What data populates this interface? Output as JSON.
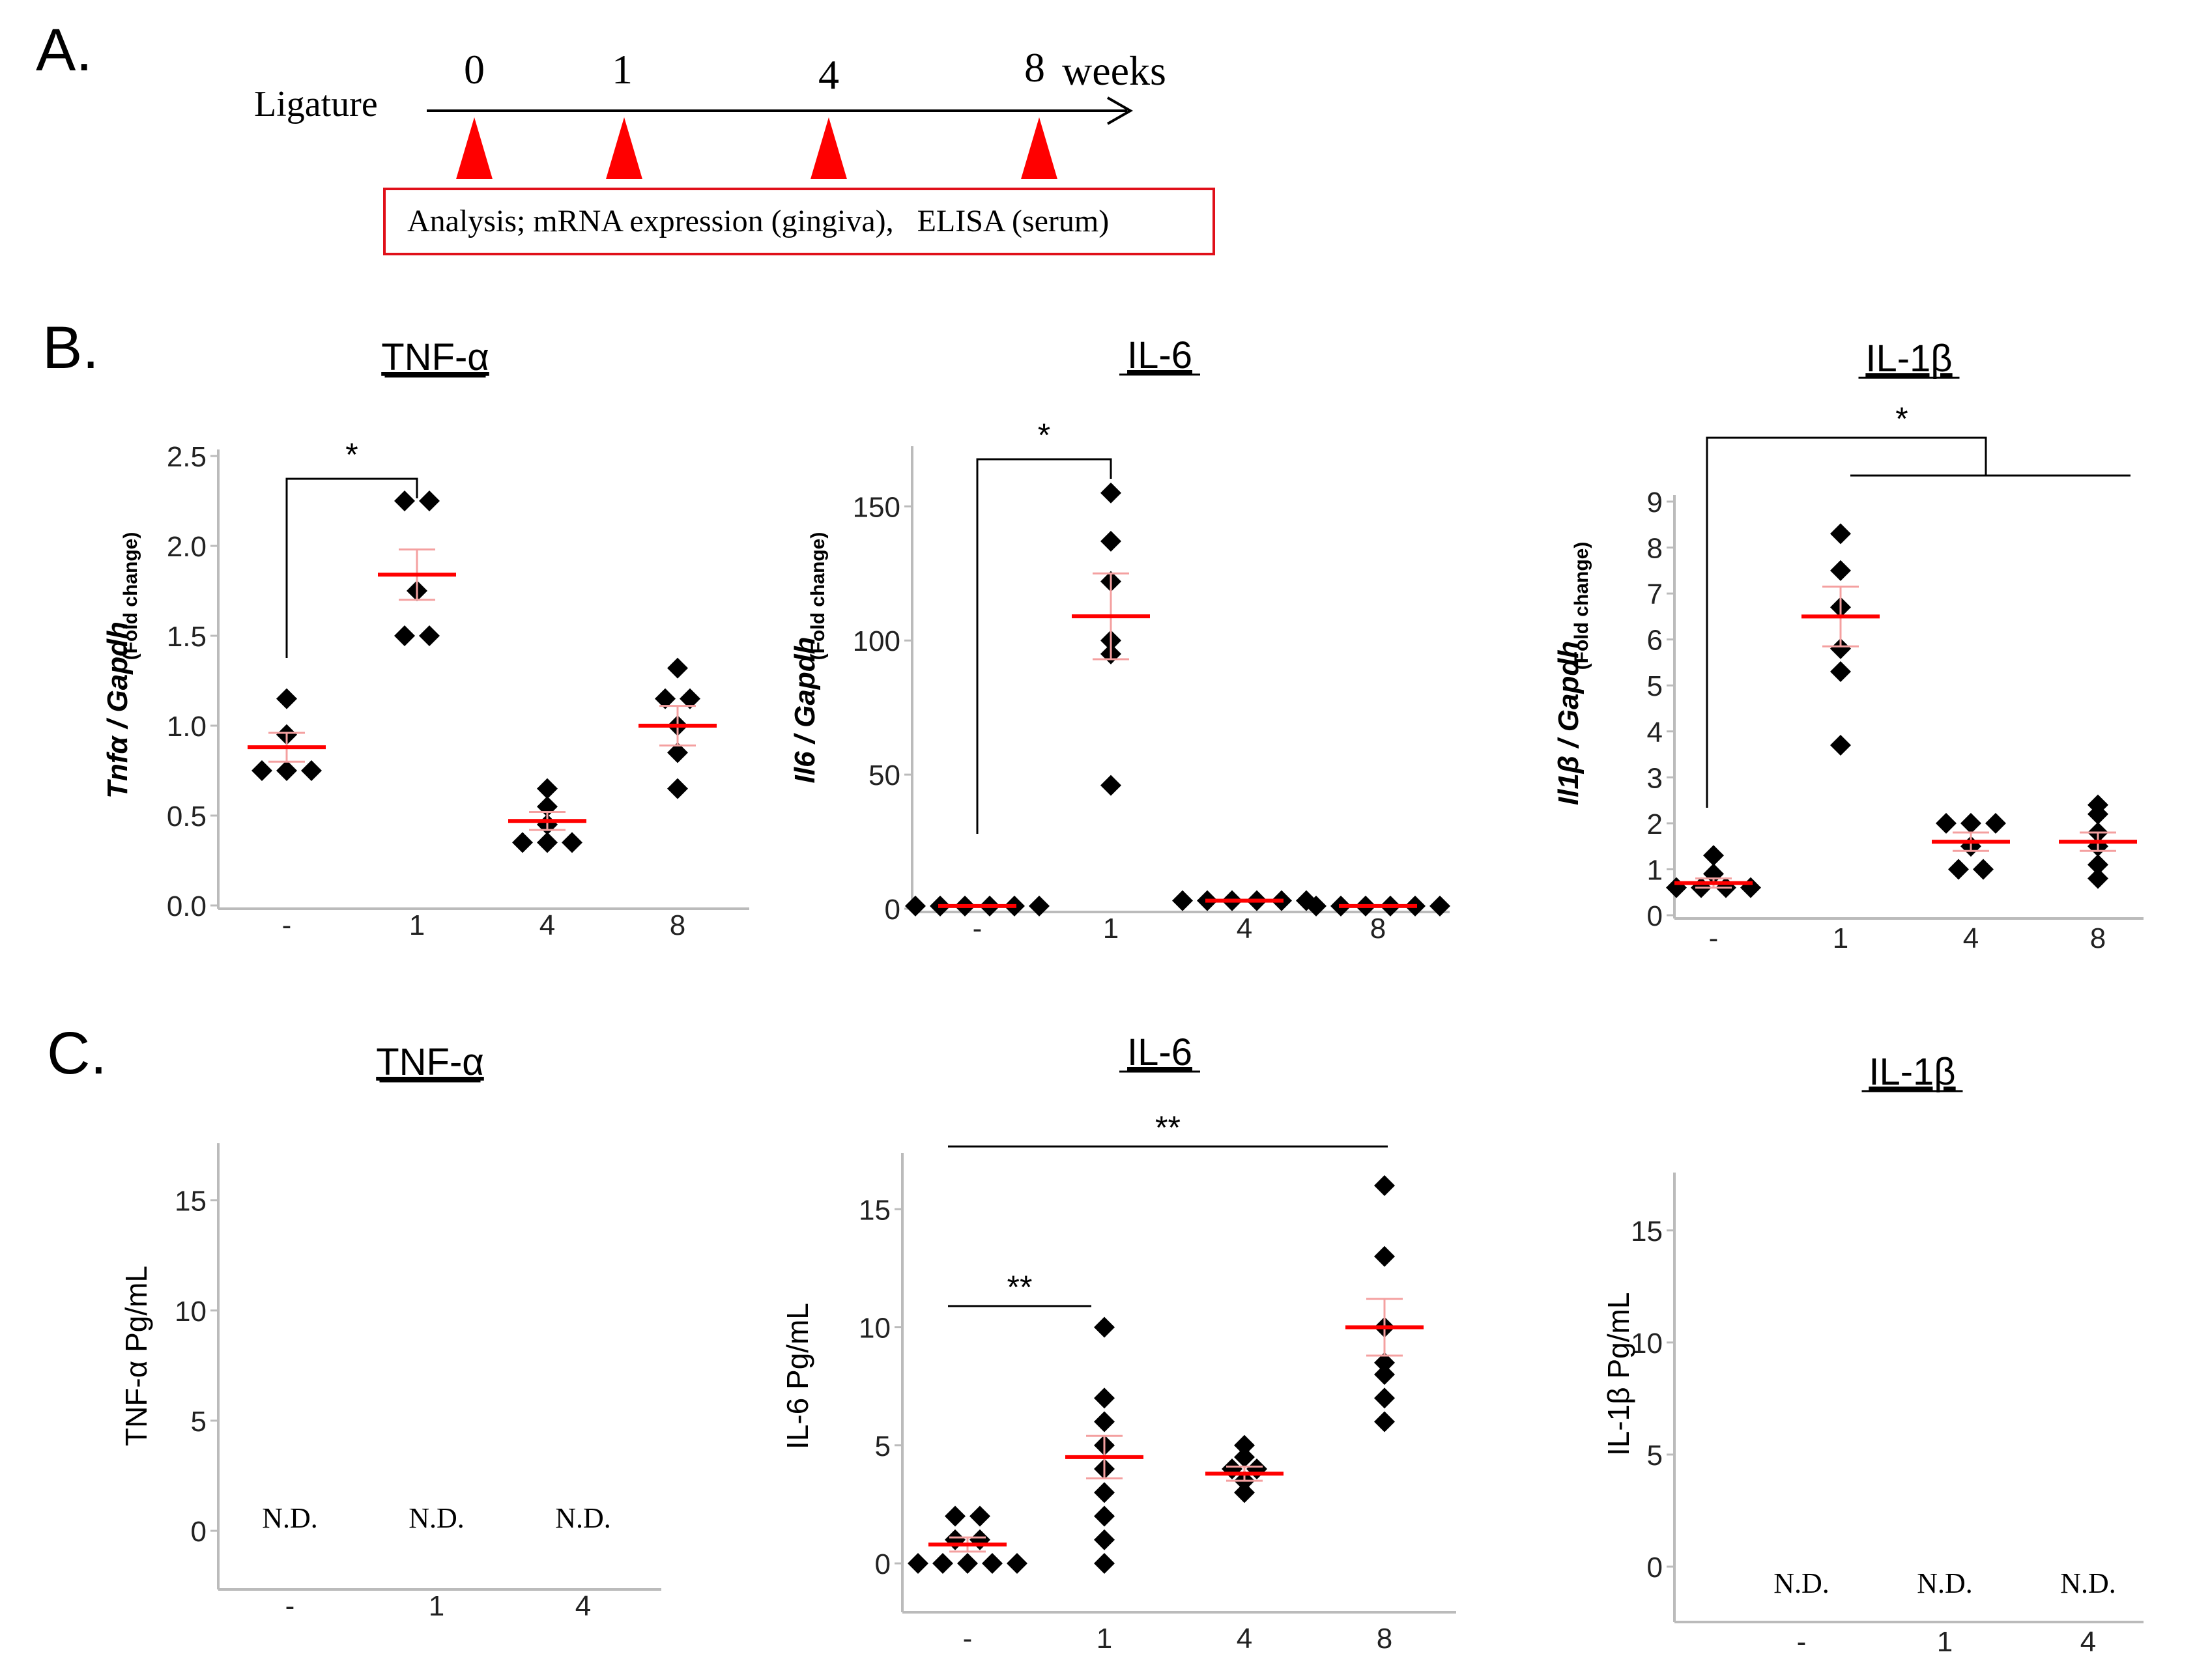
{
  "panel_labels": {
    "a": "A.",
    "b": "B.",
    "c": "C."
  },
  "timeline": {
    "start_label": "Ligature",
    "weeks": [
      "0",
      "1",
      "4",
      "8"
    ],
    "unit_label": "weeks",
    "analysis_text": "Analysis; mRNA expression (gingiva),   ELISA (serum)",
    "marker_color": "#ff0000",
    "box_color": "#e0101a"
  },
  "colors": {
    "point": "#000000",
    "mean": "#ff0000",
    "sem": "#f4a0a0",
    "axis": "#bbbbbb"
  },
  "chart_data": [
    {
      "id": "b-tnf",
      "type": "scatter",
      "title": "TNF-α",
      "ylabel_main": "Tnfα / Gapdh",
      "ylabel_sub": "(Fold change)",
      "categories": [
        "-",
        "1",
        "4",
        "8"
      ],
      "yticks": [
        "0.0",
        "0.5",
        "1.0",
        "1.5",
        "2.0",
        "2.5"
      ],
      "ylim": [
        0,
        2.5
      ],
      "points": [
        [
          0.75,
          0.75,
          0.75,
          0.95,
          1.15
        ],
        [
          1.5,
          1.5,
          1.75,
          2.25,
          2.25
        ],
        [
          0.35,
          0.35,
          0.35,
          0.45,
          0.55,
          0.65
        ],
        [
          0.65,
          0.85,
          1.0,
          1.15,
          1.15,
          1.32
        ]
      ],
      "means": [
        0.88,
        1.84,
        0.47,
        1.0
      ],
      "sems": [
        0.08,
        0.14,
        0.05,
        0.11
      ],
      "annotations": [
        {
          "label": "*",
          "from": 0,
          "to": 1
        }
      ]
    },
    {
      "id": "b-il6",
      "type": "scatter",
      "title": "IL-6",
      "ylabel_main": "Il6 / Gapdh",
      "ylabel_sub": "(Fold change)",
      "categories": [
        "-",
        "1",
        "4",
        "8"
      ],
      "yticks": [
        "0",
        "50",
        "100",
        "150"
      ],
      "ylim": [
        0,
        170
      ],
      "points": [
        [
          1,
          1,
          1,
          1,
          1,
          1
        ],
        [
          46,
          95,
          100,
          122,
          137,
          155
        ],
        [
          3,
          3,
          3,
          3,
          3,
          3
        ],
        [
          1,
          1,
          1,
          1,
          1,
          1
        ]
      ],
      "means": [
        1,
        109,
        3,
        1
      ],
      "sems": [
        0.3,
        16,
        0.3,
        0.3
      ],
      "annotations": [
        {
          "label": "*",
          "from": 0,
          "to": 1
        }
      ]
    },
    {
      "id": "b-il1b",
      "type": "scatter",
      "title": "IL-1β",
      "ylabel_main": "Il1β / Gapdh",
      "ylabel_sub": "(Fold change)",
      "categories": [
        "-",
        "1",
        "4",
        "8"
      ],
      "yticks": [
        "0",
        "1",
        "2",
        "3",
        "4",
        "5",
        "6",
        "7",
        "8",
        "9"
      ],
      "ylim": [
        0,
        9
      ],
      "points": [
        [
          0.6,
          0.6,
          0.6,
          0.6,
          0.9,
          1.3
        ],
        [
          3.7,
          5.3,
          5.8,
          6.7,
          7.5,
          8.3
        ],
        [
          1,
          1,
          1.5,
          2,
          2,
          2
        ],
        [
          0.8,
          1.1,
          1.5,
          1.8,
          2.2,
          2.4
        ]
      ],
      "means": [
        0.7,
        6.5,
        1.6,
        1.6
      ],
      "sems": [
        0.1,
        0.65,
        0.2,
        0.2
      ],
      "annotations": [
        {
          "label": "*",
          "from": 0,
          "to_group": [
            1,
            3
          ]
        }
      ]
    },
    {
      "id": "c-tnf",
      "type": "scatter",
      "title": "TNF-α",
      "ylabel_main": "TNF-α  Pg/mL",
      "categories": [
        "-",
        "1",
        "4"
      ],
      "yticks": [
        "0",
        "5",
        "10",
        "15"
      ],
      "ylim": [
        0,
        17
      ],
      "nd_labels": [
        "N.D.",
        "N.D.",
        "N.D."
      ]
    },
    {
      "id": "c-il6",
      "type": "scatter",
      "title": "IL-6",
      "ylabel_main": "IL-6  Pg/mL",
      "categories": [
        "-",
        "1",
        "4",
        "8"
      ],
      "yticks": [
        "0",
        "5",
        "10",
        "15"
      ],
      "ylim": [
        0,
        16
      ],
      "points": [
        [
          0,
          0,
          0,
          0,
          0,
          1,
          1,
          2,
          2
        ],
        [
          0,
          1,
          2,
          3,
          4,
          5,
          6,
          7,
          10
        ],
        [
          3,
          3.5,
          4,
          4,
          4.5,
          5
        ],
        [
          6,
          7,
          8,
          8.5,
          10,
          13,
          16
        ]
      ],
      "means": [
        0.8,
        4.5,
        3.8,
        10
      ],
      "sems": [
        0.3,
        0.9,
        0.3,
        1.2
      ],
      "annotations": [
        {
          "label": "**",
          "from": 0,
          "to": 1
        },
        {
          "label": "**",
          "from": 0,
          "to": 3
        }
      ]
    },
    {
      "id": "c-il1b",
      "type": "scatter",
      "title": "IL-1β",
      "ylabel_main": "IL-1β  Pg/mL",
      "categories": [
        "-",
        "1",
        "4"
      ],
      "yticks": [
        "0",
        "5",
        "10",
        "15"
      ],
      "ylim": [
        0,
        17
      ],
      "nd_labels": [
        "N.D.",
        "N.D.",
        "N.D."
      ]
    }
  ]
}
